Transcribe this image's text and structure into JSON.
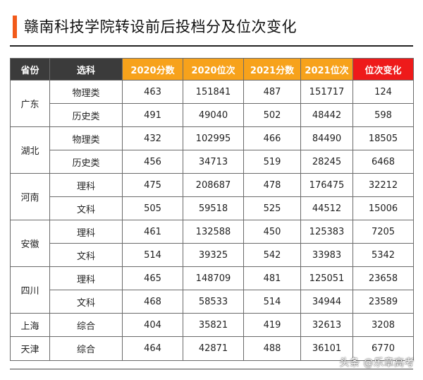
{
  "title": "赣南科技学院转设前后投档分及位次变化",
  "headers": [
    "省份",
    "选科",
    "2020分数",
    "2020位次",
    "2021分数",
    "2021位次",
    "位次变化"
  ],
  "colors": {
    "accent_bar": "#f25a1a",
    "header_dark": "#3b3b3b",
    "header_orange": "#f7a21b",
    "header_red": "#ee1a1a"
  },
  "groups": [
    {
      "province": "广东",
      "rows": [
        {
          "subject": "物理类",
          "s2020": "463",
          "r2020": "151841",
          "s2021": "487",
          "r2021": "151717",
          "change": "124"
        },
        {
          "subject": "历史类",
          "s2020": "491",
          "r2020": "49040",
          "s2021": "502",
          "r2021": "48442",
          "change": "598"
        }
      ]
    },
    {
      "province": "湖北",
      "rows": [
        {
          "subject": "物理类",
          "s2020": "432",
          "r2020": "102995",
          "s2021": "466",
          "r2021": "84490",
          "change": "18505"
        },
        {
          "subject": "历史类",
          "s2020": "456",
          "r2020": "34713",
          "s2021": "519",
          "r2021": "28245",
          "change": "6468"
        }
      ]
    },
    {
      "province": "河南",
      "rows": [
        {
          "subject": "理科",
          "s2020": "475",
          "r2020": "208687",
          "s2021": "478",
          "r2021": "176475",
          "change": "32212"
        },
        {
          "subject": "文科",
          "s2020": "505",
          "r2020": "59518",
          "s2021": "525",
          "r2021": "44512",
          "change": "15006"
        }
      ]
    },
    {
      "province": "安徽",
      "rows": [
        {
          "subject": "理科",
          "s2020": "461",
          "r2020": "132588",
          "s2021": "450",
          "r2021": "125383",
          "change": "7205"
        },
        {
          "subject": "文科",
          "s2020": "514",
          "r2020": "39325",
          "s2021": "542",
          "r2021": "33983",
          "change": "5342"
        }
      ]
    },
    {
      "province": "四川",
      "rows": [
        {
          "subject": "理科",
          "s2020": "465",
          "r2020": "148709",
          "s2021": "481",
          "r2021": "125051",
          "change": "23658"
        },
        {
          "subject": "文科",
          "s2020": "468",
          "r2020": "58533",
          "s2021": "514",
          "r2021": "34944",
          "change": "23589"
        }
      ]
    },
    {
      "province": "上海",
      "rows": [
        {
          "subject": "综合",
          "s2020": "404",
          "r2020": "35821",
          "s2021": "419",
          "r2021": "32613",
          "change": "3208"
        }
      ]
    },
    {
      "province": "天津",
      "rows": [
        {
          "subject": "综合",
          "s2020": "464",
          "r2020": "42871",
          "s2021": "488",
          "r2021": "36101",
          "change": "6770"
        }
      ]
    }
  ],
  "watermark": "头条 @乐章高考"
}
